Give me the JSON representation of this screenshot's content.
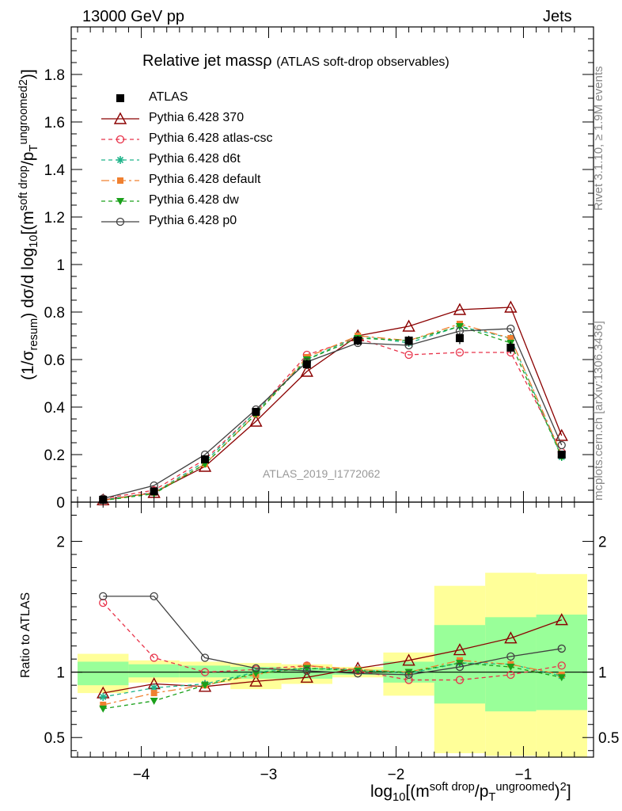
{
  "header": {
    "energy_label": "13000 GeV pp",
    "process_label": "Jets"
  },
  "side_labels": {
    "rivet": "Rivet 3.1.10, ≥ 1.9M events",
    "mcplots": "mcplots.cern.ch [arXiv:1306.3436]"
  },
  "title": {
    "main": "Relative jet massρ",
    "sub": "(ATLAS soft-drop observables)"
  },
  "analysis_id": "ATLAS_2019_I1772062",
  "axis_labels": {
    "y_main_a": "(1/σ",
    "y_main_b": "resum",
    "y_main_c": ") dσ/d log",
    "y_main_d": "10",
    "y_main_e": "[(m",
    "y_main_f": "soft drop",
    "y_main_g": "/p",
    "y_main_h": "T",
    "y_main_i": "ungroomed",
    "y_main_j": "2",
    "y_main_k": ")",
    "y_main_l": "]",
    "y_ratio": "Ratio to ATLAS",
    "x_a": "log",
    "x_b": "10",
    "x_c": "[(m",
    "x_d": "soft drop",
    "x_e": "/p",
    "x_f": "T",
    "x_g": "ungroomed",
    "x_h": ")",
    "x_i": "2",
    "x_j": "]"
  },
  "chart_data": {
    "type": "line",
    "x": [
      -4.3,
      -3.9,
      -3.5,
      -3.1,
      -2.7,
      -2.3,
      -1.9,
      -1.5,
      -1.1,
      -0.7
    ],
    "xlim": [
      -4.55,
      -0.45
    ],
    "main_ylim": [
      0,
      2.0
    ],
    "main_yticks": [
      0,
      0.2,
      0.4,
      0.6,
      0.8,
      1,
      1.2,
      1.4,
      1.6,
      1.8
    ],
    "main_ytick_labels": [
      "0",
      "0.2",
      "0.4",
      "0.6",
      "0.8",
      "1",
      "1.2",
      "1.4",
      "1.6",
      "1.8"
    ],
    "ratio_ylim": [
      0.35,
      2.3
    ],
    "ratio_yticks": [
      0.5,
      1,
      2
    ],
    "ratio_ytick_labels": [
      "0.5",
      "1",
      "2"
    ],
    "xticks": [
      -4,
      -3,
      -2,
      -1
    ],
    "xtick_labels": [
      "−4",
      "−3",
      "−2",
      "−1"
    ],
    "data": {
      "name": "ATLAS",
      "values": [
        0.01,
        0.045,
        0.18,
        0.38,
        0.58,
        0.68,
        0.68,
        0.69,
        0.65,
        0.2
      ],
      "errors": [
        0.002,
        0.005,
        0.01,
        0.015,
        0.02,
        0.02,
        0.02,
        0.025,
        0.025,
        0.01
      ]
    },
    "ratio_bands": {
      "yellow": [
        [
          0.84,
          1.14
        ],
        [
          0.92,
          1.09
        ],
        [
          0.92,
          1.08
        ],
        [
          0.87,
          1.07
        ],
        [
          0.91,
          1.06
        ],
        [
          0.96,
          1.04
        ],
        [
          0.82,
          1.15
        ],
        [
          0.38,
          1.66
        ],
        [
          0.36,
          1.76
        ],
        [
          0.35,
          1.75
        ]
      ],
      "green": [
        [
          0.9,
          1.08
        ],
        [
          0.96,
          1.06
        ],
        [
          0.96,
          1.05
        ],
        [
          0.95,
          1.04
        ],
        [
          0.95,
          1.03
        ],
        [
          0.98,
          1.02
        ],
        [
          0.92,
          1.08
        ],
        [
          0.76,
          1.36
        ],
        [
          0.7,
          1.42
        ],
        [
          0.71,
          1.44
        ]
      ]
    },
    "series": [
      {
        "name": "Pythia 6.428 370",
        "color": "#8b0000",
        "dash": "",
        "marker": "triangle-open",
        "values": [
          0.009,
          0.04,
          0.15,
          0.34,
          0.55,
          0.7,
          0.74,
          0.81,
          0.82,
          0.28
        ],
        "ratio": [
          0.84,
          0.91,
          0.89,
          0.93,
          0.96,
          1.03,
          1.09,
          1.17,
          1.26,
          1.4
        ]
      },
      {
        "name": "Pythia 6.428 atlas-csc",
        "color": "#e8334a",
        "dash": "5,4",
        "marker": "circle-open",
        "values": [
          0.015,
          0.05,
          0.18,
          0.38,
          0.62,
          0.69,
          0.62,
          0.63,
          0.63,
          0.21
        ],
        "ratio": [
          1.53,
          1.11,
          1.0,
          1.02,
          1.05,
          1.01,
          0.94,
          0.94,
          0.98,
          1.05
        ]
      },
      {
        "name": "Pythia 6.428 d6t",
        "color": "#1fb48a",
        "dash": "5,4",
        "marker": "star",
        "values": [
          0.008,
          0.04,
          0.17,
          0.38,
          0.6,
          0.7,
          0.67,
          0.74,
          0.69,
          0.19
        ],
        "ratio": [
          0.81,
          0.88,
          0.91,
          1.0,
          1.03,
          1.02,
          0.99,
          1.07,
          1.06,
          0.97
        ]
      },
      {
        "name": "Pythia 6.428 default",
        "color": "#f08030",
        "dash": "10,4,3,4",
        "marker": "square",
        "values": [
          0.007,
          0.04,
          0.16,
          0.37,
          0.61,
          0.7,
          0.68,
          0.75,
          0.69,
          0.2
        ],
        "ratio": [
          0.75,
          0.84,
          0.9,
          0.98,
          1.05,
          1.02,
          1.0,
          1.09,
          1.06,
          0.98
        ]
      },
      {
        "name": "Pythia 6.428 dw",
        "color": "#1aa01a",
        "dash": "5,4",
        "marker": "triangle-down",
        "values": [
          0.007,
          0.035,
          0.16,
          0.37,
          0.6,
          0.69,
          0.68,
          0.74,
          0.67,
          0.19
        ],
        "ratio": [
          0.72,
          0.78,
          0.9,
          0.99,
          1.03,
          1.01,
          1.0,
          1.07,
          1.04,
          0.96
        ]
      },
      {
        "name": "Pythia 6.428 p0",
        "color": "#404040",
        "dash": "",
        "marker": "circle-open",
        "values": [
          0.015,
          0.07,
          0.2,
          0.39,
          0.59,
          0.67,
          0.66,
          0.72,
          0.73,
          0.24
        ],
        "ratio": [
          1.58,
          1.58,
          1.11,
          1.03,
          1.01,
          0.99,
          0.98,
          1.04,
          1.12,
          1.18
        ]
      }
    ]
  }
}
